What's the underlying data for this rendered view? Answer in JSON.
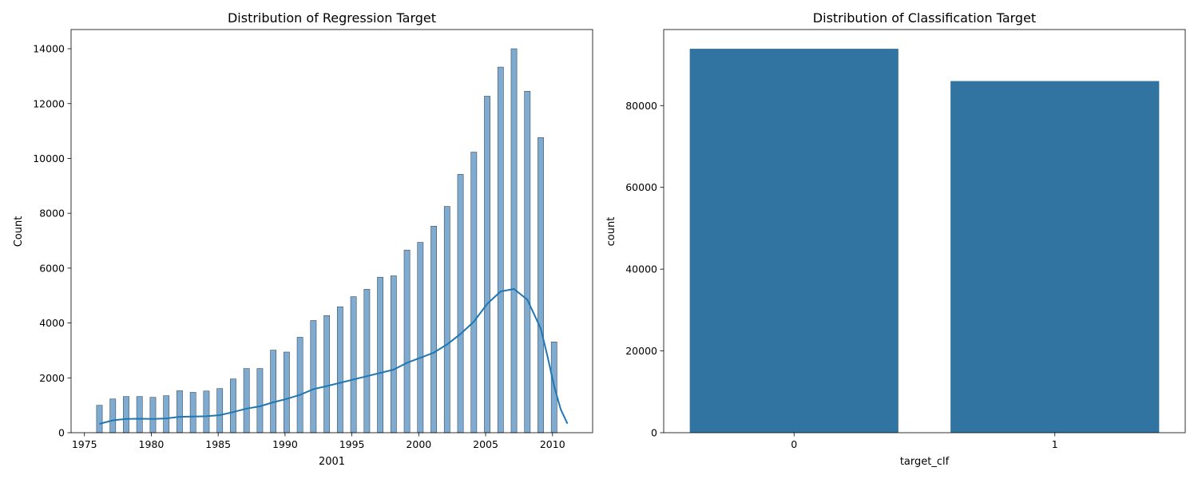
{
  "chart_data": [
    {
      "type": "bar",
      "subtype": "histogram",
      "title": "Distribution of Regression Target",
      "xlabel": "2001",
      "ylabel": "Count",
      "xlim": [
        1974,
        2013
      ],
      "ylim": [
        0,
        14700
      ],
      "x_ticks": [
        "1975",
        "1980",
        "1985",
        "1990",
        "1995",
        "2000",
        "2005",
        "2010"
      ],
      "y_ticks": [
        "0",
        "2000",
        "4000",
        "6000",
        "8000",
        "10000",
        "12000",
        "14000"
      ],
      "grid": false,
      "bar_color": "#7eabcf",
      "line_color": "#1f77b4",
      "x": [
        1976,
        1977,
        1978,
        1979,
        1980,
        1981,
        1982,
        1983,
        1984,
        1985,
        1986,
        1987,
        1988,
        1989,
        1990,
        1991,
        1992,
        1993,
        1994,
        1995,
        1996,
        1997,
        1998,
        1999,
        2000,
        2001,
        2002,
        2003,
        2004,
        2005,
        2006,
        2007,
        2008,
        2009,
        2010
      ],
      "values": [
        1000,
        1230,
        1320,
        1320,
        1290,
        1350,
        1530,
        1470,
        1520,
        1610,
        1960,
        2340,
        2340,
        3010,
        2940,
        3480,
        4090,
        4270,
        4590,
        4960,
        5230,
        5670,
        5720,
        6660,
        6940,
        7530,
        8250,
        9420,
        10230,
        12270,
        13330,
        14000,
        12450,
        10760,
        3310
      ],
      "kde": {
        "x": [
          1976,
          1977,
          1978,
          1979,
          1980,
          1981,
          1982,
          1983,
          1984,
          1985,
          1986,
          1987,
          1988,
          1989,
          1990,
          1991,
          1992,
          1993,
          1994,
          1995,
          1996,
          1997,
          1998,
          1999,
          2000,
          2001,
          2002,
          2003,
          2004,
          2005,
          2006,
          2007,
          2008,
          2009,
          2009.5,
          2010,
          2010.5,
          2011
        ],
        "y": [
          320,
          450,
          500,
          510,
          500,
          520,
          580,
          590,
          600,
          640,
          750,
          880,
          960,
          1110,
          1230,
          1380,
          1590,
          1700,
          1820,
          1940,
          2060,
          2180,
          2300,
          2550,
          2730,
          2920,
          3220,
          3600,
          4050,
          4700,
          5150,
          5240,
          4850,
          3800,
          2800,
          1700,
          850,
          330
        ]
      }
    },
    {
      "type": "bar",
      "title": "Distribution of Classification Target",
      "xlabel": "target_clf",
      "ylabel": "count",
      "categories": [
        "0",
        "1"
      ],
      "values": [
        93900,
        86000
      ],
      "ylim": [
        0,
        98600
      ],
      "y_ticks": [
        "0",
        "20000",
        "40000",
        "60000",
        "80000"
      ],
      "grid": false,
      "bar_color": "#3274a1"
    }
  ]
}
